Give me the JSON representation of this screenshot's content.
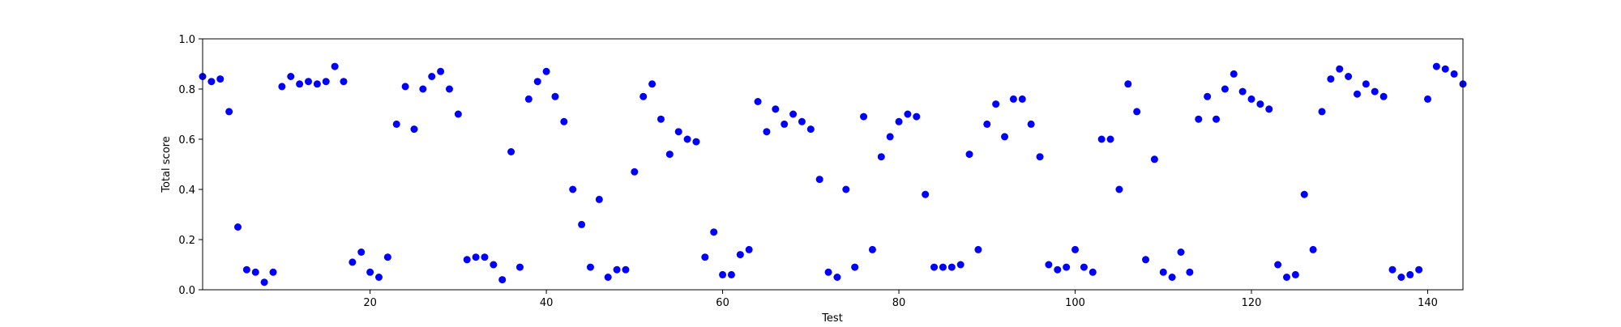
{
  "chart_data": {
    "type": "scatter",
    "title": "",
    "xlabel": "Test",
    "ylabel": "Total score",
    "xlim": [
      1,
      144
    ],
    "ylim": [
      0,
      1.0
    ],
    "x_ticks": [
      20,
      40,
      60,
      80,
      100,
      120,
      140
    ],
    "y_ticks": [
      0.0,
      0.2,
      0.4,
      0.6,
      0.8,
      1.0
    ],
    "x_tick_labels": [
      "20",
      "40",
      "60",
      "80",
      "100",
      "120",
      "140"
    ],
    "y_tick_labels": [
      "0.0",
      "0.2",
      "0.4",
      "0.6",
      "0.8",
      "1.0"
    ],
    "grid": false,
    "legend": "none",
    "marker_color": "#0000ff",
    "series": [
      {
        "x": [
          1,
          2,
          3,
          4,
          5,
          6,
          7,
          8,
          9,
          10,
          11,
          12,
          13,
          14,
          15,
          16,
          17,
          18,
          19,
          20,
          21,
          22,
          23,
          24,
          25,
          26,
          27,
          28,
          29,
          30,
          31,
          32,
          33,
          34,
          35,
          36,
          37,
          38,
          39,
          40,
          41,
          42,
          43,
          44,
          45,
          46,
          47,
          48,
          49,
          50,
          51,
          52,
          53,
          54,
          55,
          56,
          57,
          58,
          59,
          60,
          61,
          62,
          63,
          64,
          65,
          66,
          67,
          68,
          69,
          70,
          71,
          72,
          73,
          74,
          75,
          76,
          77,
          78,
          79,
          80,
          81,
          82,
          83,
          84,
          85,
          86,
          87,
          88,
          89,
          90,
          91,
          92,
          93,
          94,
          95,
          96,
          97,
          98,
          99,
          100,
          101,
          102,
          103,
          104,
          105,
          106,
          107,
          108,
          109,
          110,
          111,
          112,
          113,
          114,
          115,
          116,
          117,
          118,
          119,
          120,
          121,
          122,
          123,
          124,
          125,
          126,
          127,
          128,
          129,
          130,
          131,
          132,
          133,
          134,
          135,
          136,
          137,
          138,
          139,
          140,
          141,
          142,
          143,
          144
        ],
        "y": [
          0.85,
          0.83,
          0.84,
          0.71,
          0.25,
          0.08,
          0.07,
          0.03,
          0.07,
          0.81,
          0.85,
          0.82,
          0.83,
          0.82,
          0.83,
          0.89,
          0.83,
          0.11,
          0.15,
          0.07,
          0.05,
          0.13,
          0.66,
          0.81,
          0.64,
          0.8,
          0.85,
          0.87,
          0.8,
          0.7,
          0.12,
          0.13,
          0.13,
          0.1,
          0.04,
          0.55,
          0.09,
          0.76,
          0.83,
          0.87,
          0.77,
          0.67,
          0.4,
          0.26,
          0.09,
          0.36,
          0.05,
          0.08,
          0.08,
          0.47,
          0.77,
          0.82,
          0.68,
          0.54,
          0.63,
          0.6,
          0.59,
          0.13,
          0.23,
          0.06,
          0.06,
          0.14,
          0.16,
          0.75,
          0.63,
          0.72,
          0.66,
          0.7,
          0.67,
          0.64,
          0.44,
          0.07,
          0.05,
          0.4,
          0.09,
          0.69,
          0.16,
          0.53,
          0.61,
          0.67,
          0.7,
          0.69,
          0.38,
          0.09,
          0.09,
          0.09,
          0.1,
          0.54,
          0.16,
          0.66,
          0.74,
          0.61,
          0.76,
          0.76,
          0.66,
          0.53,
          0.1,
          0.08,
          0.09,
          0.16,
          0.09,
          0.07,
          0.6,
          0.6,
          0.4,
          0.82,
          0.71,
          0.12,
          0.52,
          0.07,
          0.05,
          0.15,
          0.07,
          0.68,
          0.77,
          0.68,
          0.8,
          0.86,
          0.79,
          0.76,
          0.74,
          0.72,
          0.1,
          0.05,
          0.06,
          0.38,
          0.16,
          0.71,
          0.84,
          0.88,
          0.85,
          0.78,
          0.82,
          0.79,
          0.77,
          0.08,
          0.05,
          0.06,
          0.08,
          0.76,
          0.89,
          0.88,
          0.86,
          0.82
        ]
      }
    ]
  }
}
